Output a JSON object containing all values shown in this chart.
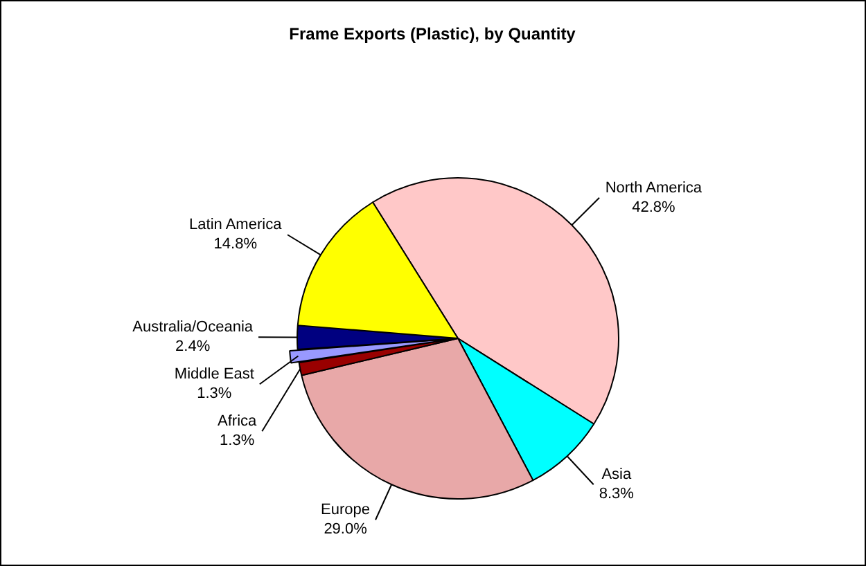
{
  "chart_data": {
    "type": "pie",
    "title": "Frame Exports (Plastic), by Quantity",
    "categories": [
      "North America",
      "Asia",
      "Europe",
      "Africa",
      "Middle East",
      "Australia/Oceania",
      "Latin America"
    ],
    "values": [
      42.8,
      8.3,
      29.0,
      1.3,
      1.3,
      2.4,
      14.8
    ],
    "value_labels": [
      "42.8%",
      "8.3%",
      "29.0%",
      "1.3%",
      "1.3%",
      "2.4%",
      "14.8%"
    ],
    "colors": [
      "#ffc8c8",
      "#00ffff",
      "#e8a8a8",
      "#990000",
      "#9999ff",
      "#000080",
      "#ffff00"
    ]
  }
}
